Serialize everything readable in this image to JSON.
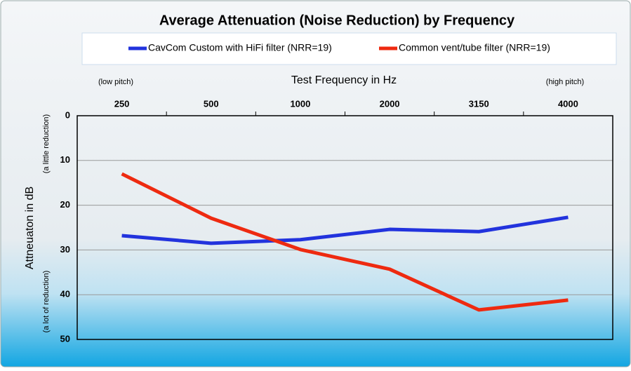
{
  "chart_data": {
    "type": "line",
    "title": "Average Attenuation (Noise Reduction) by Frequency",
    "x_label": "Test Frequency in Hz",
    "y_label": "Attneuaton in dB",
    "x_annotations": [
      "(low pitch)",
      "(high pitch)"
    ],
    "y_annotations": [
      "(a little reduction)",
      "(a lot of reduction)"
    ],
    "categories": [
      "250",
      "500",
      "1000",
      "2000",
      "3150",
      "4000"
    ],
    "series": [
      {
        "name": "CavCom Custom with HiFi filter (NRR=19)",
        "color": "#2233dd",
        "values": [
          26.8,
          28.5,
          27.7,
          25.4,
          25.9,
          22.7
        ]
      },
      {
        "name": "Common vent/tube filter (NRR=19)",
        "color": "#ee2a10",
        "values": [
          13.0,
          22.9,
          29.9,
          34.3,
          43.4,
          41.2
        ]
      }
    ],
    "ylim": [
      0,
      50
    ],
    "yticks": [
      0,
      10,
      20,
      30,
      40,
      50
    ],
    "y_inverted": true,
    "grid": true,
    "legend": "top",
    "x_axis_position": "top"
  }
}
